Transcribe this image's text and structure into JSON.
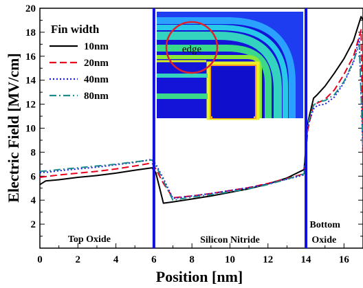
{
  "chart_data": {
    "type": "line",
    "title": "",
    "xlabel": "Position [nm]",
    "ylabel": "Electric Field [MV/cm]",
    "xlim": [
      0,
      17
    ],
    "ylim": [
      0,
      20
    ],
    "xticks": [
      "0",
      "2",
      "4",
      "6",
      "8",
      "10",
      "12",
      "14",
      "16"
    ],
    "yticks": [
      "2",
      "4",
      "6",
      "8",
      "10",
      "12",
      "14",
      "16",
      "18",
      "20"
    ],
    "legend": {
      "title": "Fin width",
      "position": "top-left"
    },
    "boundaries": [
      6,
      14
    ],
    "regions": [
      {
        "label": "Top Oxide",
        "x": 2.6
      },
      {
        "label": "Silicon Nitride",
        "x": 10.0
      },
      {
        "label": "Bottom",
        "x": 15.0
      },
      {
        "label": "Oxide",
        "x": 14.95
      }
    ],
    "inset": {
      "label": "edge"
    },
    "series": [
      {
        "name": "10nm",
        "color": "#000000",
        "dash": "",
        "points": [
          [
            0,
            5.3
          ],
          [
            0.3,
            5.6
          ],
          [
            1,
            5.7
          ],
          [
            2,
            5.9
          ],
          [
            3,
            6.05
          ],
          [
            4,
            6.25
          ],
          [
            5,
            6.5
          ],
          [
            5.9,
            6.7
          ],
          [
            6.1,
            6.3
          ],
          [
            6.5,
            3.75
          ],
          [
            7,
            3.85
          ],
          [
            8,
            4.1
          ],
          [
            9,
            4.35
          ],
          [
            10,
            4.65
          ],
          [
            11,
            4.95
          ],
          [
            12,
            5.35
          ],
          [
            13,
            5.85
          ],
          [
            13.9,
            6.55
          ],
          [
            14.1,
            10.5
          ],
          [
            14.4,
            12.5
          ],
          [
            14.6,
            12.8
          ],
          [
            15,
            13.5
          ],
          [
            15.5,
            14.6
          ],
          [
            16,
            15.8
          ],
          [
            16.5,
            17.3
          ],
          [
            16.9,
            19.3
          ],
          [
            17,
            19.0
          ]
        ]
      },
      {
        "name": "20nm",
        "color": "#e8001c",
        "dash": "10,5",
        "points": [
          [
            0,
            5.9
          ],
          [
            0.5,
            6.0
          ],
          [
            1,
            6.1
          ],
          [
            2,
            6.25
          ],
          [
            3,
            6.4
          ],
          [
            4,
            6.6
          ],
          [
            5,
            6.85
          ],
          [
            5.9,
            7.1
          ],
          [
            6.1,
            6.6
          ],
          [
            6.5,
            5.4
          ],
          [
            7,
            4.2
          ],
          [
            8,
            4.35
          ],
          [
            9,
            4.55
          ],
          [
            10,
            4.8
          ],
          [
            11,
            5.05
          ],
          [
            12,
            5.4
          ],
          [
            13,
            5.8
          ],
          [
            13.9,
            6.2
          ],
          [
            14.1,
            9.9
          ],
          [
            14.4,
            12.0
          ],
          [
            14.6,
            12.1
          ],
          [
            15,
            12.4
          ],
          [
            15.5,
            13.2
          ],
          [
            16,
            14.5
          ],
          [
            16.5,
            16.0
          ],
          [
            16.9,
            18.2
          ],
          [
            17,
            7.5
          ]
        ]
      },
      {
        "name": "40nm",
        "color": "#1a1ae6",
        "dash": "2,3",
        "points": [
          [
            0,
            6.3
          ],
          [
            0.5,
            6.35
          ],
          [
            1,
            6.45
          ],
          [
            2,
            6.6
          ],
          [
            3,
            6.75
          ],
          [
            4,
            6.95
          ],
          [
            5,
            7.15
          ],
          [
            5.9,
            7.4
          ],
          [
            6.1,
            7.0
          ],
          [
            6.5,
            5.8
          ],
          [
            7,
            4.15
          ],
          [
            8,
            4.35
          ],
          [
            9,
            4.55
          ],
          [
            10,
            4.8
          ],
          [
            11,
            5.05
          ],
          [
            12,
            5.35
          ],
          [
            13,
            5.75
          ],
          [
            13.9,
            6.1
          ],
          [
            14.1,
            10.2
          ],
          [
            14.4,
            11.6
          ],
          [
            14.6,
            11.9
          ],
          [
            15,
            12.0
          ],
          [
            15.5,
            12.6
          ],
          [
            16,
            13.8
          ],
          [
            16.5,
            15.5
          ],
          [
            16.8,
            17.5
          ],
          [
            17,
            8.0
          ]
        ]
      },
      {
        "name": "80nm",
        "color": "#1f8a8a",
        "dash": "10,4,2,4",
        "points": [
          [
            0,
            6.4
          ],
          [
            0.5,
            6.45
          ],
          [
            1,
            6.55
          ],
          [
            2,
            6.7
          ],
          [
            3,
            6.85
          ],
          [
            4,
            7.0
          ],
          [
            5,
            7.2
          ],
          [
            5.9,
            7.35
          ],
          [
            6.1,
            6.9
          ],
          [
            6.5,
            5.6
          ],
          [
            7,
            4.0
          ],
          [
            8,
            4.25
          ],
          [
            9,
            4.45
          ],
          [
            10,
            4.7
          ],
          [
            11,
            4.95
          ],
          [
            12,
            5.3
          ],
          [
            13,
            5.75
          ],
          [
            13.9,
            6.2
          ],
          [
            14.1,
            10.4
          ],
          [
            14.4,
            11.9
          ],
          [
            14.6,
            12.2
          ],
          [
            15,
            12.3
          ],
          [
            15.5,
            12.8
          ],
          [
            16,
            13.9
          ],
          [
            16.5,
            15.6
          ],
          [
            16.8,
            17.0
          ],
          [
            17,
            8.5
          ]
        ]
      }
    ]
  }
}
